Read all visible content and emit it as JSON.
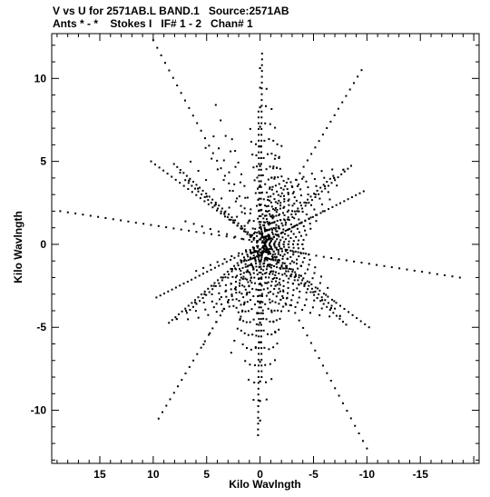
{
  "header": {
    "line1": "V vs U for 2571AB.L BAND.1   Source:2571AB",
    "line2": "Ants * - *    Stokes I   IF# 1 - 2   Chan# 1"
  },
  "chart_data": {
    "type": "scatter",
    "title": "V vs U for 2571AB.L BAND.1   Source:2571AB",
    "subtitle": "Ants * - *    Stokes I   IF# 1 - 2   Chan# 1",
    "xlabel": "Kilo Wavlngth",
    "ylabel": "Kilo Wavlngth",
    "xlim": [
      19.5,
      -20.5
    ],
    "ylim": [
      -13.2,
      12.7
    ],
    "x_ticks": [
      15,
      10,
      5,
      0,
      -5,
      -10,
      -15
    ],
    "x_tick_labels": [
      "15",
      "10",
      "5",
      "0",
      "-5",
      "-10",
      "-15"
    ],
    "y_ticks": [
      10,
      5,
      0,
      -5,
      -10
    ],
    "y_tick_labels": [
      "10",
      "5",
      "0",
      "-5",
      "-10"
    ],
    "grid": false,
    "marker_color": "#000000",
    "arms": [
      {
        "direction_deg": 90,
        "max_radius": 11.8
      },
      {
        "direction_deg": 150,
        "max_radius": 10.0
      },
      {
        "direction_deg": 210,
        "max_radius": 9.6
      },
      {
        "direction_deg": 270,
        "max_radius": 11.8
      },
      {
        "direction_deg": 330,
        "max_radius": 10.0
      },
      {
        "direction_deg": 30,
        "max_radius": 9.6
      }
    ],
    "tracks": [
      {
        "x1": 10.0,
        "y1": 12.3,
        "x2": 0.3,
        "y2": 0.5
      },
      {
        "x1": 18.7,
        "y1": 2.0,
        "x2": 0.3,
        "y2": 0.2
      },
      {
        "x1": 9.5,
        "y1": -10.5,
        "x2": 0.1,
        "y2": -0.4
      },
      {
        "x1": -10.0,
        "y1": -12.3,
        "x2": -0.3,
        "y2": -0.5
      },
      {
        "x1": -18.7,
        "y1": -2.0,
        "x2": -0.3,
        "y2": -0.2
      },
      {
        "x1": -9.5,
        "y1": 10.5,
        "x2": -0.1,
        "y2": 0.4
      },
      {
        "x1": 10.2,
        "y1": 5.0,
        "x2": 0.2,
        "y2": 0.2
      },
      {
        "x1": -10.2,
        "y1": -5.0,
        "x2": -0.2,
        "y2": -0.2
      },
      {
        "x1": 9.7,
        "y1": -3.2,
        "x2": 0.2,
        "y2": -0.1
      },
      {
        "x1": -9.7,
        "y1": 3.2,
        "x2": -0.2,
        "y2": 0.1
      }
    ]
  }
}
